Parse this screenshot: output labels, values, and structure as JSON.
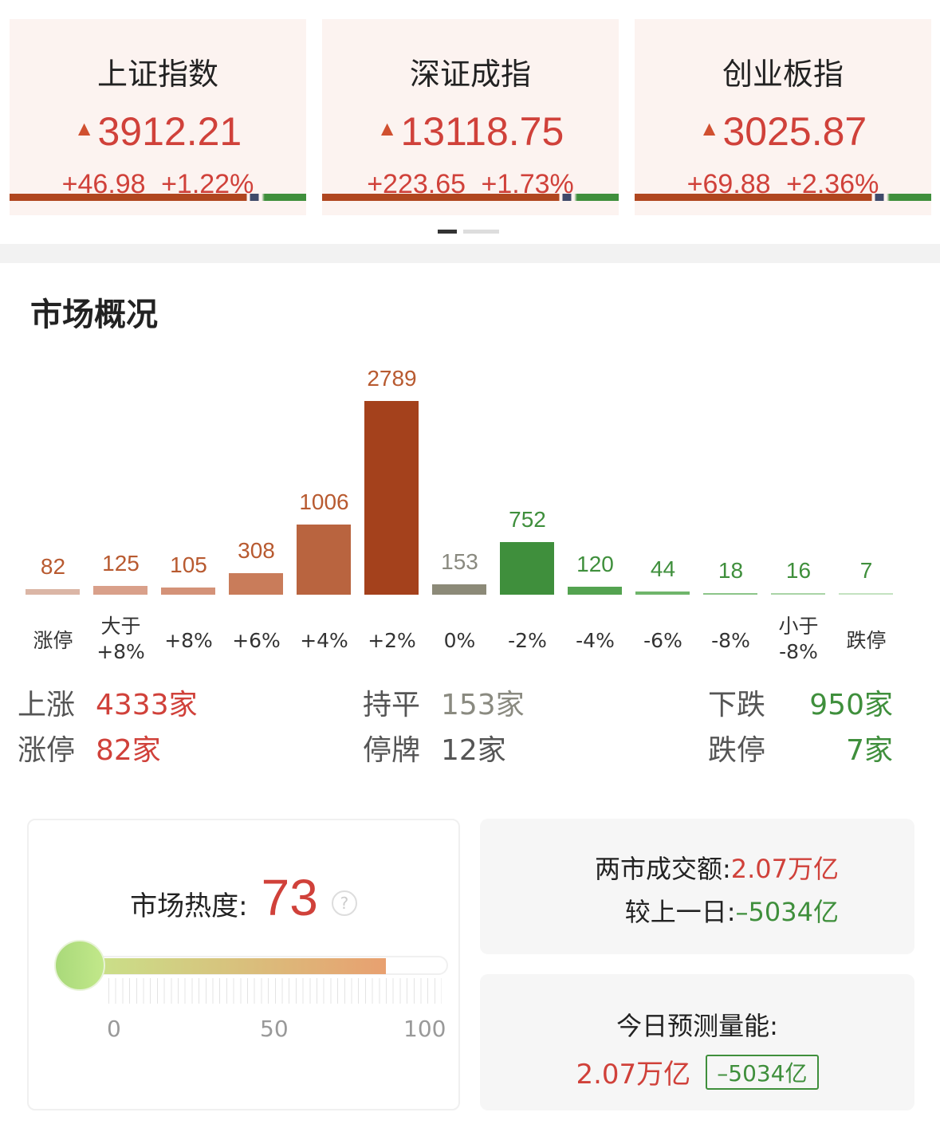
{
  "indices": [
    {
      "name": "上证指数",
      "price": "3912.21",
      "change": "+46.98",
      "pct": "+1.22%"
    },
    {
      "name": "深证成指",
      "price": "13118.75",
      "change": "+223.65",
      "pct": "+1.73%"
    },
    {
      "name": "创业板指",
      "price": "3025.87",
      "change": "+69.88",
      "pct": "+2.36%"
    }
  ],
  "up_arrow": "▲",
  "section_title": "市场概况",
  "chart_data": {
    "type": "bar",
    "categories": [
      "涨停",
      "大于\n+8%",
      "+8%",
      "+6%",
      "+4%",
      "+2%",
      "0%",
      "-2%",
      "-4%",
      "-6%",
      "-8%",
      "小于\n-8%",
      "跌停"
    ],
    "values": [
      82,
      125,
      105,
      308,
      1006,
      2789,
      153,
      752,
      120,
      44,
      18,
      16,
      7
    ],
    "colors": [
      "#dbb6a6",
      "#d9a08a",
      "#d49278",
      "#c97c5a",
      "#b9643f",
      "#a4411c",
      "#8c8a78",
      "#3f8f3c",
      "#54a350",
      "#6fb56b",
      "#8cc589",
      "#a9d4a6",
      "#c4e2c1"
    ],
    "label_colors": [
      "#b85a30",
      "#b85a30",
      "#b85a30",
      "#b85a30",
      "#b85a30",
      "#b85a30",
      "#8a8a80",
      "#3f8f3c",
      "#3f8f3c",
      "#3f8f3c",
      "#3f8f3c",
      "#3f8f3c",
      "#3f8f3c"
    ]
  },
  "stats": {
    "up_label": "上涨",
    "up_value": "4333家",
    "limit_up_label": "涨停",
    "limit_up_value": "82家",
    "flat_label": "持平",
    "flat_value": "153家",
    "suspended_label": "停牌",
    "suspended_value": "12家",
    "down_label": "下跌",
    "down_value": "950家",
    "limit_down_label": "跌停",
    "limit_down_value": "7家"
  },
  "heat": {
    "label": "市场热度:",
    "value": "73",
    "level": 0.73,
    "help": "?",
    "ticks": [
      "0",
      "50",
      "100"
    ]
  },
  "turnover": {
    "label": "两市成交额:",
    "value": "2.07万亿",
    "cmp_label": "较上一日:",
    "cmp_value": "–5034亿"
  },
  "forecast": {
    "label": "今日预测量能:",
    "value": "2.07万亿",
    "badge": "–5034亿"
  },
  "colors": {
    "red": "#d0413a",
    "green": "#3f8f3c"
  }
}
